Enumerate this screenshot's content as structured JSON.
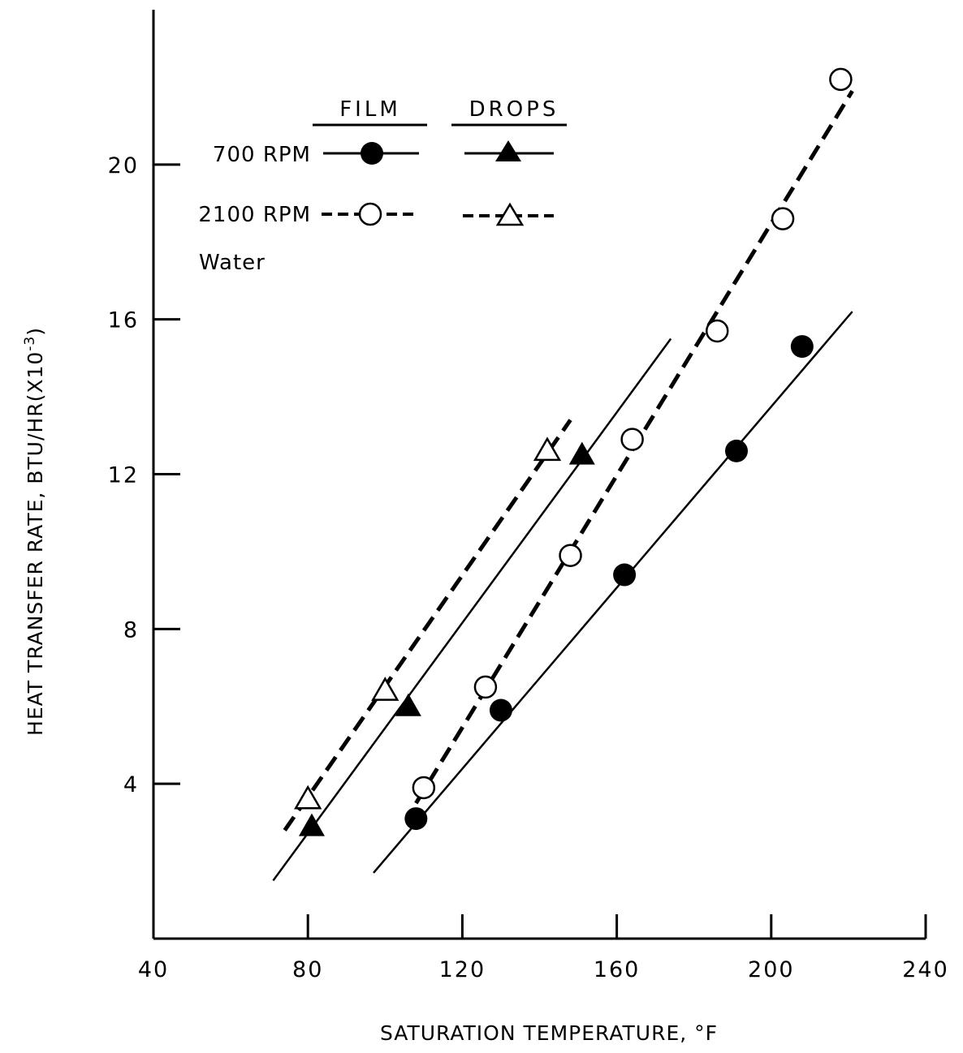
{
  "chart_data": {
    "type": "scatter",
    "xlabel": "SATURATION TEMPERATURE, °F",
    "ylabel": "HEAT TRANSFER RATE, BTU/HR(X10",
    "ylabel_exponent": "-3",
    "ylabel_close": ")",
    "xlim": [
      40,
      240
    ],
    "ylim": [
      0,
      24
    ],
    "x_ticks": [
      40,
      80,
      120,
      160,
      200,
      240
    ],
    "y_ticks": [
      4,
      8,
      12,
      16,
      20
    ],
    "x_tick_labels": [
      "40",
      "80",
      "120",
      "160",
      "200",
      "240"
    ],
    "y_tick_labels": [
      "4",
      "8",
      "12",
      "16",
      "20"
    ],
    "grid": false,
    "legend": {
      "placement": "top-left",
      "column_headers": [
        "FILM",
        "DROPS"
      ],
      "row_labels": [
        "700 RPM",
        "2100 RPM"
      ],
      "note": "Water"
    },
    "series": [
      {
        "condensation": "FILM",
        "speed": "700 RPM",
        "marker": "filled-circle",
        "line": "solid",
        "points": [
          [
            108,
            3.1
          ],
          [
            130,
            5.9
          ],
          [
            162,
            9.4
          ],
          [
            191,
            12.6
          ],
          [
            208,
            15.3
          ]
        ],
        "fit_line": [
          [
            97,
            1.7
          ],
          [
            221,
            16.2
          ]
        ]
      },
      {
        "condensation": "FILM",
        "speed": "2100 RPM",
        "marker": "open-circle",
        "line": "dashed",
        "points": [
          [
            110,
            3.9
          ],
          [
            126,
            6.5
          ],
          [
            148,
            9.9
          ],
          [
            164,
            12.9
          ],
          [
            186,
            15.7
          ],
          [
            203,
            18.6
          ],
          [
            218,
            22.2
          ]
        ],
        "fit_line": [
          [
            108,
            3.5
          ],
          [
            221,
            21.9
          ]
        ]
      },
      {
        "condensation": "DROPS",
        "speed": "700 RPM",
        "marker": "filled-triangle",
        "line": "solid",
        "points": [
          [
            81,
            2.9
          ],
          [
            106,
            6.0
          ],
          [
            151,
            12.5
          ]
        ],
        "fit_line": [
          [
            71,
            1.5
          ],
          [
            174,
            15.5
          ]
        ]
      },
      {
        "condensation": "DROPS",
        "speed": "2100 RPM",
        "marker": "open-triangle",
        "line": "dashed",
        "points": [
          [
            80,
            3.6
          ],
          [
            100,
            6.4
          ],
          [
            142,
            12.6
          ]
        ],
        "fit_line": [
          [
            74,
            2.8
          ],
          [
            148,
            13.4
          ]
        ]
      }
    ]
  }
}
